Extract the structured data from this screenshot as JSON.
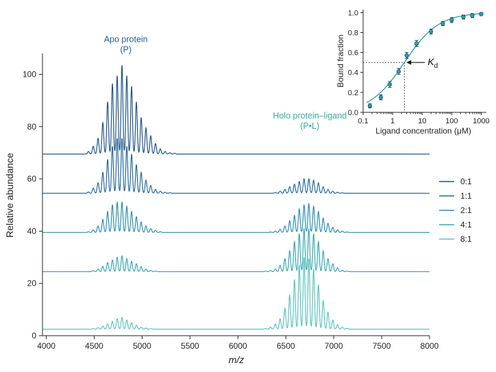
{
  "colors": {
    "apo_annotation": "#1f5f95",
    "holo_annotation": "#3aaaa5",
    "series": [
      "#1f5488",
      "#25699b",
      "#2b8fab",
      "#36a9b0",
      "#5ec3bd"
    ],
    "inset_curve": "#2a9ea3",
    "axis": "#222222"
  },
  "chart_data": [
    {
      "type": "line",
      "xlabel": "m/z",
      "ylabel": "Relative abundance",
      "xlim": [
        3960,
        8000
      ],
      "ylim": [
        0,
        108
      ],
      "x_ticks": [
        4000,
        4500,
        5000,
        5500,
        6000,
        6500,
        7000,
        7500,
        8000
      ],
      "y_ticks": [
        0,
        20,
        40,
        60,
        80,
        100
      ],
      "annotations": {
        "apo": {
          "line1": "Apo protein",
          "line2": "(P)",
          "x": 4830,
          "y": 104
        },
        "holo": {
          "line1": "Holo protein–ligand",
          "line2": "(P•L)",
          "x": 6750,
          "y": 82
        }
      },
      "legend_position": "right",
      "peaks": {
        "positions": [
          4440,
          4490,
          4540,
          4590,
          4640,
          4690,
          4740,
          4790,
          4840,
          4890,
          4940,
          4990,
          5040,
          5090,
          5140,
          5190,
          5240,
          5290,
          5340
        ],
        "holo_positions": [
          6290,
          6340,
          6390,
          6440,
          6490,
          6540,
          6590,
          6640,
          6690,
          6740,
          6790,
          6840,
          6890,
          6940,
          6990,
          7040,
          7090,
          7140
        ],
        "half_width": 10
      },
      "series": [
        {
          "name": "0:1",
          "baseline": 69.5,
          "apo_heights": [
            1,
            3,
            6,
            12,
            20,
            27,
            30,
            34,
            30,
            26,
            20,
            14,
            10,
            7,
            4,
            2,
            1,
            0.5,
            0.3
          ],
          "holo_heights": []
        },
        {
          "name": "1:1",
          "baseline": 54.5,
          "apo_heights": [
            0.5,
            2,
            4,
            8,
            13,
            18,
            21,
            21,
            18,
            15,
            11,
            8,
            5,
            3,
            1.5,
            0.8,
            0.4,
            0.2,
            0
          ],
          "holo_heights": [
            0,
            0,
            0.3,
            0.8,
            1.5,
            2.5,
            3.5,
            4.5,
            5.5,
            5.5,
            5,
            4,
            2.5,
            1.5,
            0.8,
            0.4,
            0.2,
            0
          ]
        },
        {
          "name": "2:1",
          "baseline": 39.5,
          "apo_heights": [
            0.3,
            1,
            2.5,
            5,
            8,
            10.5,
            11.5,
            11.5,
            10,
            8,
            6,
            4,
            2.5,
            1.5,
            0.8,
            0.3,
            0,
            0,
            0
          ],
          "holo_heights": [
            0,
            0.2,
            0.5,
            1.2,
            2.5,
            4.5,
            6.5,
            9,
            10.5,
            11,
            10,
            8,
            5.5,
            3.5,
            2,
            1,
            0.5,
            0.2
          ]
        },
        {
          "name": "4:1",
          "baseline": 24.5,
          "apo_heights": [
            0,
            0.4,
            1,
            2,
            3.5,
            4.5,
            5.5,
            6,
            5,
            4,
            3,
            2,
            1,
            0.5,
            0.2,
            0,
            0,
            0,
            0
          ],
          "holo_heights": [
            0.2,
            0.5,
            1,
            2.5,
            5,
            8,
            11.5,
            14.5,
            16.5,
            16.5,
            14.5,
            11.5,
            8,
            5,
            3,
            1.5,
            0.6,
            0.2
          ]
        },
        {
          "name": "8:1",
          "baseline": 2.5,
          "apo_heights": [
            0,
            0.2,
            0.6,
            1.2,
            2,
            3,
            4,
            4.5,
            3.5,
            2.5,
            1.6,
            0.8,
            0.4,
            0.2,
            0,
            0,
            0,
            0,
            0
          ],
          "holo_heights": [
            0.3,
            0.8,
            2,
            4,
            8,
            13,
            19,
            24.5,
            27.5,
            27,
            23,
            17,
            11,
            6.5,
            3.5,
            1.8,
            0.8,
            0.3
          ]
        }
      ]
    },
    {
      "type": "scatter",
      "xlabel": "Ligand concentration (μM)",
      "ylabel": "Bound fraction",
      "x_scale": "log",
      "xlim": [
        0.1,
        1500
      ],
      "ylim": [
        0,
        1.03
      ],
      "x_ticks": [
        0.1,
        1,
        10,
        100,
        1000
      ],
      "x_tick_labels": [
        "0.1",
        "1",
        "10",
        "100",
        "1000"
      ],
      "y_ticks": [
        0,
        0.2,
        0.4,
        0.6,
        0.8,
        1.0
      ],
      "y_tick_labels": [
        "0.0",
        "0.2",
        "0.4",
        "0.6",
        "0.8",
        "1.0"
      ],
      "points": [
        {
          "x": 0.17,
          "y": 0.065,
          "err": 0.02
        },
        {
          "x": 0.4,
          "y": 0.15,
          "err": 0.025
        },
        {
          "x": 0.8,
          "y": 0.28,
          "err": 0.03
        },
        {
          "x": 1.6,
          "y": 0.41,
          "err": 0.03
        },
        {
          "x": 3.0,
          "y": 0.57,
          "err": 0.03
        },
        {
          "x": 6.5,
          "y": 0.69,
          "err": 0.03
        },
        {
          "x": 20,
          "y": 0.81,
          "err": 0.025
        },
        {
          "x": 50,
          "y": 0.89,
          "err": 0.02
        },
        {
          "x": 100,
          "y": 0.925,
          "err": 0.025
        },
        {
          "x": 250,
          "y": 0.955,
          "err": 0.02
        },
        {
          "x": 500,
          "y": 0.97,
          "err": 0.02
        },
        {
          "x": 1000,
          "y": 0.985,
          "err": 0.015
        }
      ],
      "fit": {
        "Kd": 2.5,
        "hill": 0.75
      },
      "kd_marker": {
        "x": 2.5,
        "y": 0.5
      },
      "annotation": {
        "main": "K",
        "sub": "d"
      }
    }
  ]
}
